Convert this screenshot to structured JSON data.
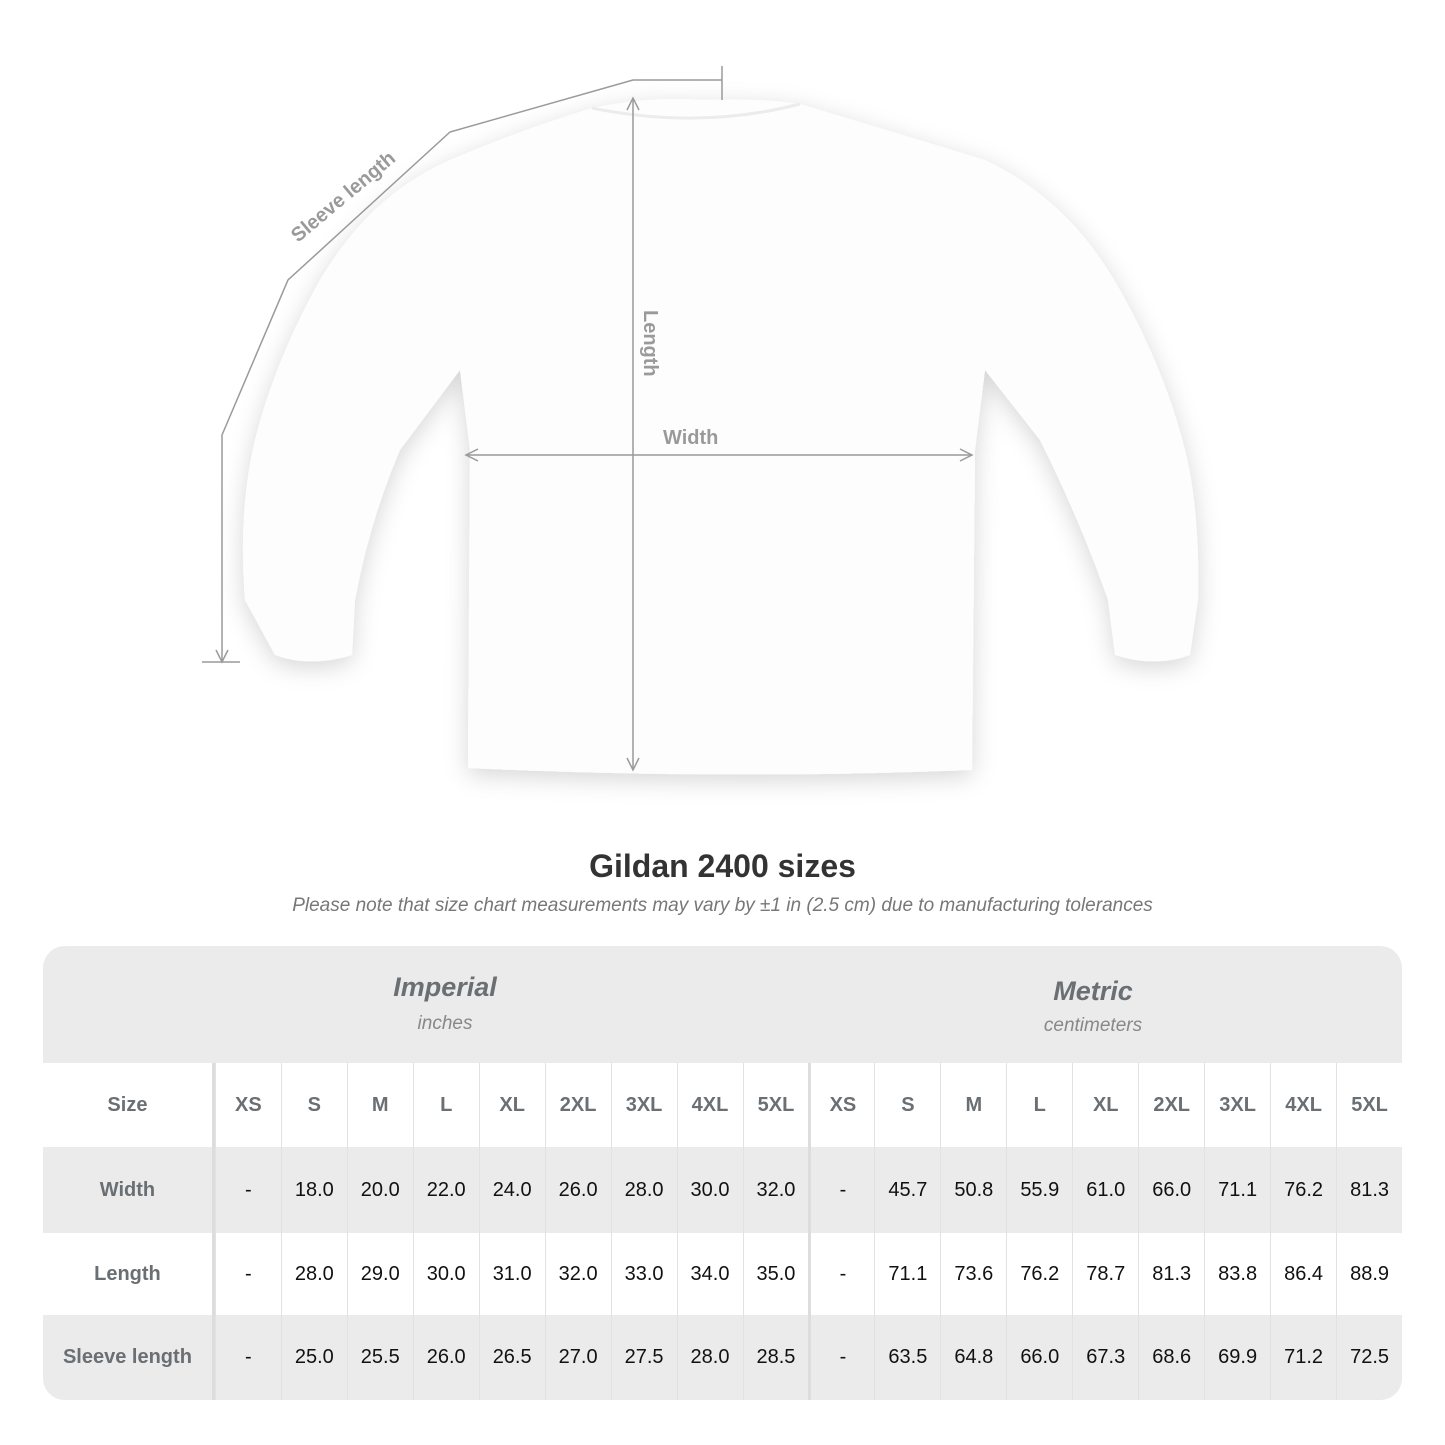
{
  "diagram": {
    "labels": {
      "sleeve": "Sleeve length",
      "length": "Length",
      "width": "Width"
    },
    "line_color": "#9a9a9a"
  },
  "title": "Gildan 2400 sizes",
  "note": "Please note that size chart measurements may vary by ±1 in (2.5 cm) due to manufacturing tolerances",
  "table": {
    "imperial": {
      "name": "Imperial",
      "unit": "inches"
    },
    "metric": {
      "name": "Metric",
      "unit": "centimeters"
    },
    "size_label": "Size",
    "sizes": [
      "XS",
      "S",
      "M",
      "L",
      "XL",
      "2XL",
      "3XL",
      "4XL",
      "5XL"
    ],
    "rows": [
      {
        "label": "Width",
        "imperial": [
          "-",
          "18.0",
          "20.0",
          "22.0",
          "24.0",
          "26.0",
          "28.0",
          "30.0",
          "32.0"
        ],
        "metric": [
          "-",
          "45.7",
          "50.8",
          "55.9",
          "61.0",
          "66.0",
          "71.1",
          "76.2",
          "81.3"
        ]
      },
      {
        "label": "Length",
        "imperial": [
          "-",
          "28.0",
          "29.0",
          "30.0",
          "31.0",
          "32.0",
          "33.0",
          "34.0",
          "35.0"
        ],
        "metric": [
          "-",
          "71.1",
          "73.6",
          "76.2",
          "78.7",
          "81.3",
          "83.8",
          "86.4",
          "88.9"
        ]
      },
      {
        "label": "Sleeve length",
        "imperial": [
          "-",
          "25.0",
          "25.5",
          "26.0",
          "26.5",
          "27.0",
          "27.5",
          "28.0",
          "28.5"
        ],
        "metric": [
          "-",
          "63.5",
          "64.8",
          "66.0",
          "67.3",
          "68.6",
          "69.9",
          "71.2",
          "72.5"
        ]
      }
    ]
  }
}
